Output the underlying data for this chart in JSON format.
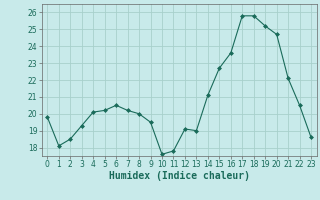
{
  "x": [
    0,
    1,
    2,
    3,
    4,
    5,
    6,
    7,
    8,
    9,
    10,
    11,
    12,
    13,
    14,
    15,
    16,
    17,
    18,
    19,
    20,
    21,
    22,
    23
  ],
  "y": [
    19.8,
    18.1,
    18.5,
    19.3,
    20.1,
    20.2,
    20.5,
    20.2,
    20.0,
    19.5,
    17.6,
    17.8,
    19.1,
    19.0,
    21.1,
    22.7,
    23.6,
    25.8,
    25.8,
    25.2,
    24.7,
    22.1,
    20.5,
    18.6
  ],
  "line_color": "#1a6b5a",
  "marker": "D",
  "marker_size": 2.0,
  "bg_color": "#c8eaea",
  "grid_color": "#a8d0cc",
  "xlabel": "Humidex (Indice chaleur)",
  "ylim": [
    17.5,
    26.5
  ],
  "xlim": [
    -0.5,
    23.5
  ],
  "yticks": [
    18,
    19,
    20,
    21,
    22,
    23,
    24,
    25,
    26
  ],
  "xticks": [
    0,
    1,
    2,
    3,
    4,
    5,
    6,
    7,
    8,
    9,
    10,
    11,
    12,
    13,
    14,
    15,
    16,
    17,
    18,
    19,
    20,
    21,
    22,
    23
  ],
  "tick_fontsize": 5.5,
  "xlabel_fontsize": 7.0
}
